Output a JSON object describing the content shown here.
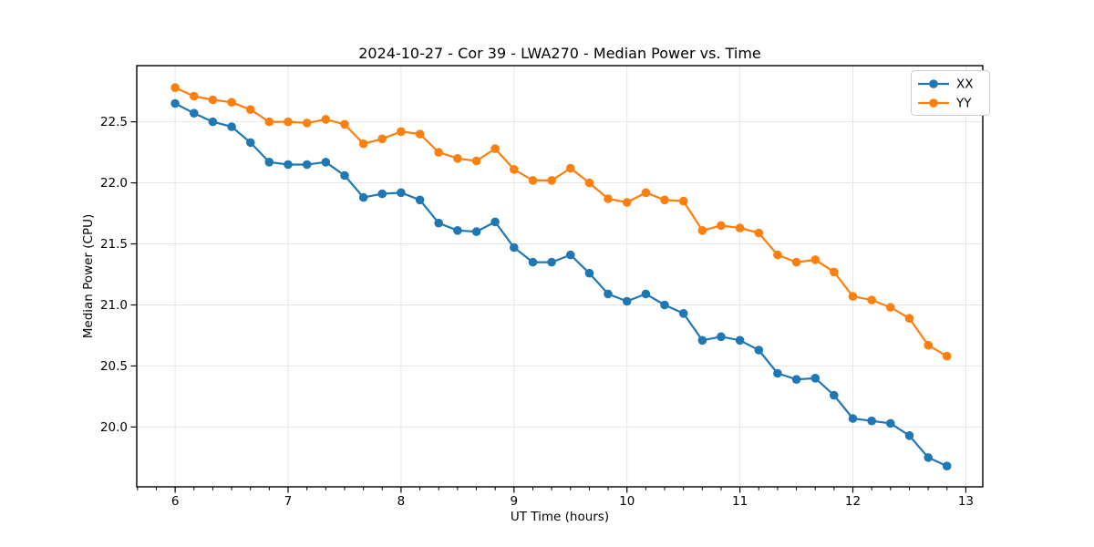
{
  "chart_data": {
    "type": "line",
    "title": "2024-10-27 - Cor 39 - LWA270 - Median Power vs. Time",
    "xlabel": "UT Time (hours)",
    "ylabel": "Median Power (CPU)",
    "xlim": [
      5.66,
      13.15
    ],
    "ylim": [
      19.51,
      22.96
    ],
    "x_ticks": [
      6,
      7,
      8,
      9,
      10,
      11,
      12,
      13
    ],
    "x_tick_labels": [
      "6",
      "7",
      "8",
      "9",
      "10",
      "11",
      "12",
      "13"
    ],
    "x_minor_tick_step_hours": 0.16667,
    "y_ticks": [
      20.0,
      20.5,
      21.0,
      21.5,
      22.0,
      22.5
    ],
    "y_tick_labels": [
      "20.0",
      "20.5",
      "21.0",
      "21.5",
      "22.0",
      "22.5"
    ],
    "grid": true,
    "legend_position": "upper right",
    "marker": "o",
    "colors": {
      "XX": "#1f77b4",
      "YY": "#ff7f0e",
      "grid": "#e6e6e6",
      "spine": "#000000",
      "legend_border": "#cccccc",
      "text": "#000000"
    },
    "x": [
      6.0,
      6.167,
      6.333,
      6.5,
      6.667,
      6.833,
      7.0,
      7.167,
      7.333,
      7.5,
      7.667,
      7.833,
      8.0,
      8.167,
      8.333,
      8.5,
      8.667,
      8.833,
      9.0,
      9.167,
      9.333,
      9.5,
      9.667,
      9.833,
      10.0,
      10.167,
      10.333,
      10.5,
      10.667,
      10.833,
      11.0,
      11.167,
      11.333,
      11.5,
      11.667,
      11.833,
      12.0,
      12.167,
      12.333,
      12.5,
      12.667,
      12.833
    ],
    "series": [
      {
        "name": "XX",
        "color_key": "XX",
        "values": [
          22.65,
          22.57,
          22.5,
          22.46,
          22.33,
          22.17,
          22.15,
          22.15,
          22.17,
          22.06,
          21.88,
          21.91,
          21.92,
          21.86,
          21.67,
          21.61,
          21.6,
          21.68,
          21.47,
          21.35,
          21.35,
          21.41,
          21.26,
          21.09,
          21.03,
          21.09,
          21.0,
          20.93,
          20.71,
          20.74,
          20.71,
          20.63,
          20.44,
          20.39,
          20.4,
          20.26,
          20.07,
          20.05,
          20.03,
          19.93,
          19.75,
          19.68
        ]
      },
      {
        "name": "YY",
        "color_key": "YY",
        "values": [
          22.78,
          22.71,
          22.68,
          22.66,
          22.6,
          22.5,
          22.5,
          22.49,
          22.52,
          22.48,
          22.32,
          22.36,
          22.42,
          22.4,
          22.25,
          22.2,
          22.18,
          22.28,
          22.11,
          22.02,
          22.02,
          22.12,
          22.0,
          21.87,
          21.84,
          21.92,
          21.86,
          21.85,
          21.61,
          21.65,
          21.63,
          21.59,
          21.41,
          21.35,
          21.37,
          21.27,
          21.07,
          21.04,
          20.98,
          20.89,
          20.67,
          20.58
        ]
      }
    ]
  }
}
